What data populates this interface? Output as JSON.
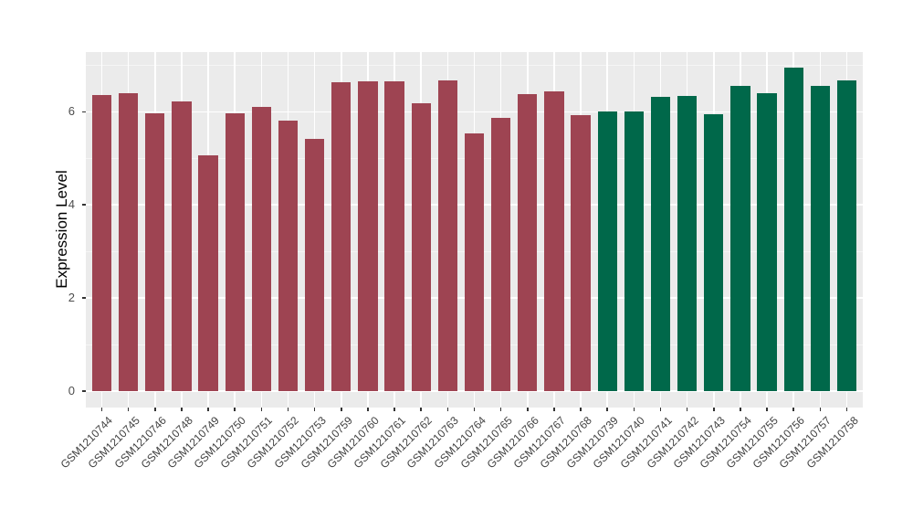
{
  "chart_data": {
    "type": "bar",
    "title": "",
    "xlabel": "",
    "ylabel": "Expression Level",
    "ylim": [
      -0.35,
      7.28
    ],
    "yticks": [
      0,
      2,
      4,
      6
    ],
    "yticks_minor": [
      1,
      3,
      5,
      7
    ],
    "grid": "on",
    "legend": "none",
    "panel_background": "#EBEBEB",
    "gridline_color": "#FFFFFF",
    "axis_text_color": "#4D4D4D",
    "group_colors": {
      "red": "#9E4452",
      "green": "#00684A"
    },
    "bars": [
      {
        "label": "GSM1210744",
        "value": 6.35,
        "group": "red"
      },
      {
        "label": "GSM1210745",
        "value": 6.4,
        "group": "red"
      },
      {
        "label": "GSM1210746",
        "value": 5.97,
        "group": "red"
      },
      {
        "label": "GSM1210748",
        "value": 6.22,
        "group": "red"
      },
      {
        "label": "GSM1210749",
        "value": 5.07,
        "group": "red"
      },
      {
        "label": "GSM1210750",
        "value": 5.97,
        "group": "red"
      },
      {
        "label": "GSM1210751",
        "value": 6.1,
        "group": "red"
      },
      {
        "label": "GSM1210752",
        "value": 5.8,
        "group": "red"
      },
      {
        "label": "GSM1210753",
        "value": 5.41,
        "group": "red"
      },
      {
        "label": "GSM1210759",
        "value": 6.63,
        "group": "red"
      },
      {
        "label": "GSM1210760",
        "value": 6.65,
        "group": "red"
      },
      {
        "label": "GSM1210761",
        "value": 6.66,
        "group": "red"
      },
      {
        "label": "GSM1210762",
        "value": 6.19,
        "group": "red"
      },
      {
        "label": "GSM1210763",
        "value": 6.67,
        "group": "red"
      },
      {
        "label": "GSM1210764",
        "value": 5.53,
        "group": "red"
      },
      {
        "label": "GSM1210765",
        "value": 5.87,
        "group": "red"
      },
      {
        "label": "GSM1210766",
        "value": 6.37,
        "group": "red"
      },
      {
        "label": "GSM1210767",
        "value": 6.43,
        "group": "red"
      },
      {
        "label": "GSM1210768",
        "value": 5.93,
        "group": "red"
      },
      {
        "label": "GSM1210739",
        "value": 6.0,
        "group": "green"
      },
      {
        "label": "GSM1210740",
        "value": 6.0,
        "group": "green"
      },
      {
        "label": "GSM1210741",
        "value": 6.31,
        "group": "green"
      },
      {
        "label": "GSM1210742",
        "value": 6.34,
        "group": "green"
      },
      {
        "label": "GSM1210743",
        "value": 5.95,
        "group": "green"
      },
      {
        "label": "GSM1210754",
        "value": 6.56,
        "group": "green"
      },
      {
        "label": "GSM1210755",
        "value": 6.39,
        "group": "green"
      },
      {
        "label": "GSM1210756",
        "value": 6.94,
        "group": "green"
      },
      {
        "label": "GSM1210757",
        "value": 6.55,
        "group": "green"
      },
      {
        "label": "GSM1210758",
        "value": 6.67,
        "group": "green"
      }
    ]
  }
}
